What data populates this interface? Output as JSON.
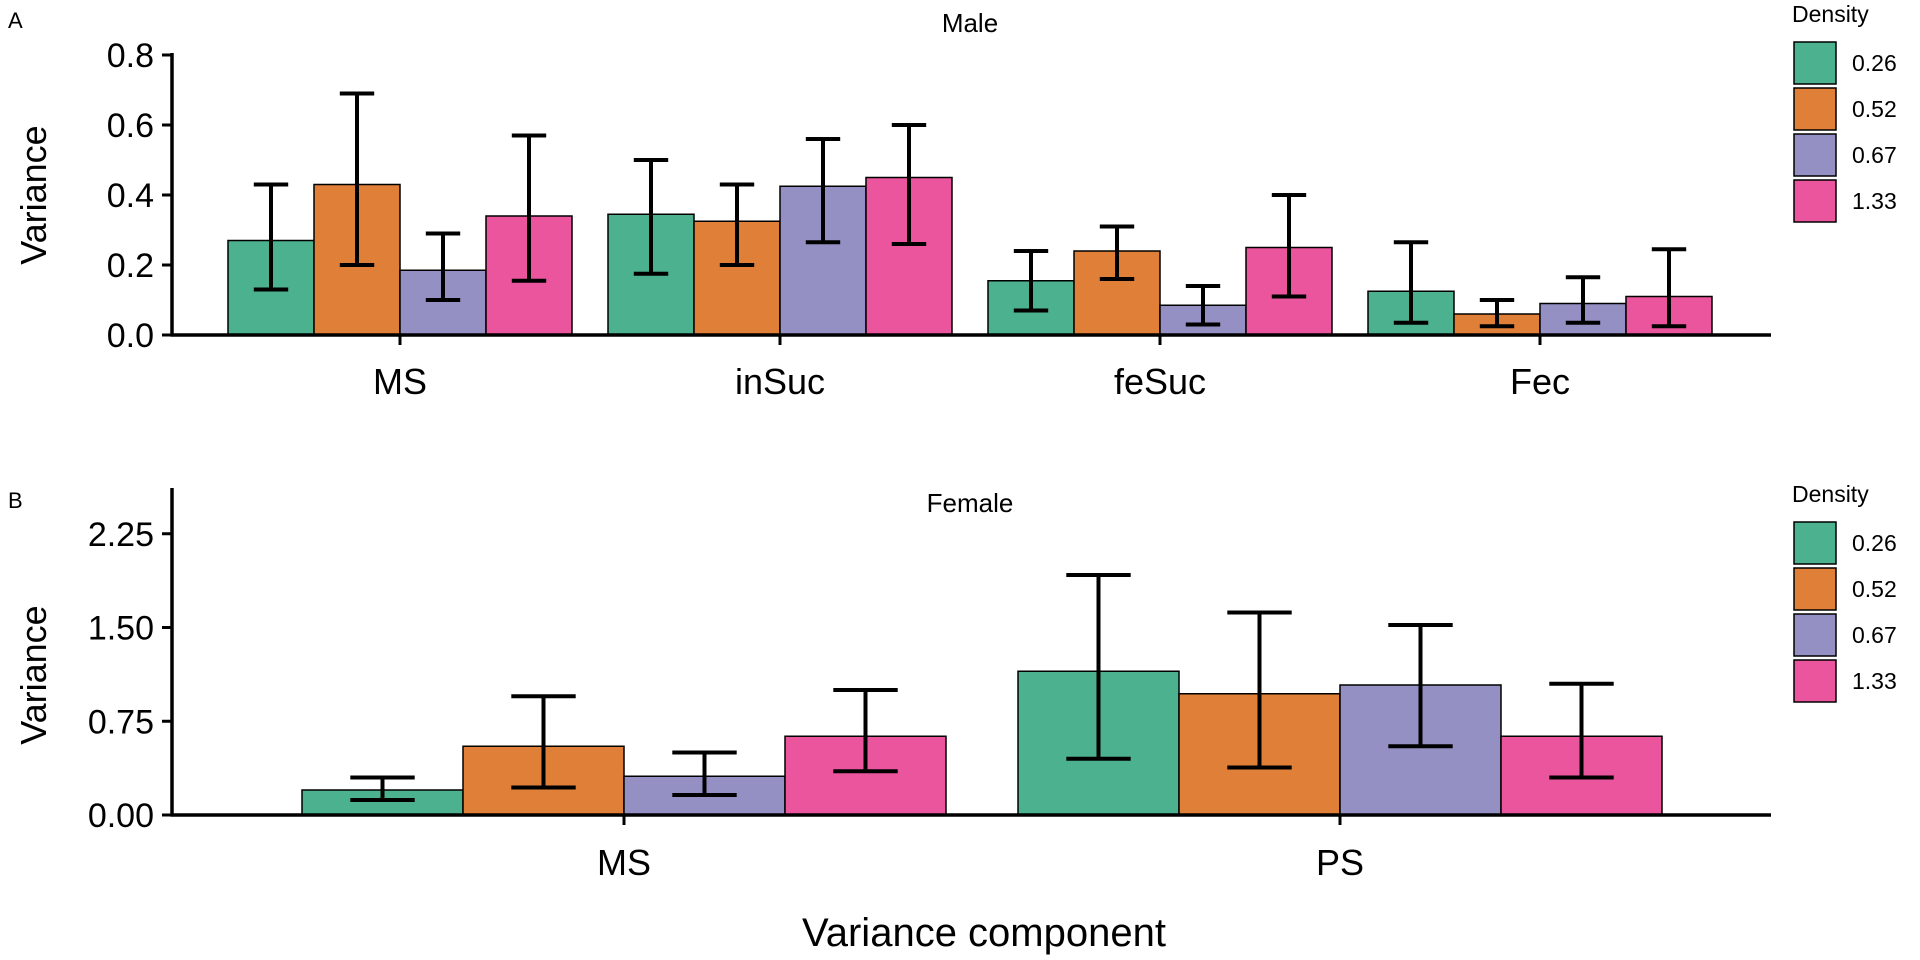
{
  "figure": {
    "xlabel": "Variance component"
  },
  "legend_title": "Density",
  "legend_labels": [
    "0.26",
    "0.52",
    "0.67",
    "1.33"
  ],
  "colors": [
    "#4bb18f",
    "#e07f38",
    "#9490c4",
    "#eb559d"
  ],
  "chart_data": [
    {
      "type": "bar",
      "panel": "A",
      "title": "Male",
      "ylabel": "Variance",
      "xlabel": "",
      "ylim": [
        0,
        0.8
      ],
      "yticks": [
        "0.0",
        "0.2",
        "0.4",
        "0.6",
        "0.8"
      ],
      "categories": [
        "MS",
        "inSuc",
        "feSuc",
        "Fec"
      ],
      "series": [
        {
          "name": "0.26",
          "values": [
            0.27,
            0.345,
            0.155,
            0.125
          ],
          "err_low": [
            0.13,
            0.175,
            0.07,
            0.035
          ],
          "err_high": [
            0.43,
            0.5,
            0.24,
            0.265
          ]
        },
        {
          "name": "0.52",
          "values": [
            0.43,
            0.325,
            0.24,
            0.06
          ],
          "err_low": [
            0.2,
            0.2,
            0.16,
            0.025
          ],
          "err_high": [
            0.69,
            0.43,
            0.31,
            0.1
          ]
        },
        {
          "name": "0.67",
          "values": [
            0.185,
            0.425,
            0.085,
            0.09
          ],
          "err_low": [
            0.1,
            0.265,
            0.03,
            0.035
          ],
          "err_high": [
            0.29,
            0.56,
            0.14,
            0.165
          ]
        },
        {
          "name": "1.33",
          "values": [
            0.34,
            0.45,
            0.25,
            0.11
          ],
          "err_low": [
            0.155,
            0.26,
            0.11,
            0.025
          ],
          "err_high": [
            0.57,
            0.6,
            0.4,
            0.245
          ]
        }
      ],
      "legend": "right",
      "grid": false
    },
    {
      "type": "bar",
      "panel": "B",
      "title": "Female",
      "ylabel": "Variance",
      "xlabel": "Variance component",
      "ylim": [
        0,
        2.6
      ],
      "yticks": [
        "0.00",
        "0.75",
        "1.50",
        "2.25"
      ],
      "categories": [
        "MS",
        "PS"
      ],
      "series": [
        {
          "name": "0.26",
          "values": [
            0.2,
            1.15
          ],
          "err_low": [
            0.12,
            0.45
          ],
          "err_high": [
            0.3,
            1.92
          ]
        },
        {
          "name": "0.52",
          "values": [
            0.55,
            0.97
          ],
          "err_low": [
            0.22,
            0.38
          ],
          "err_high": [
            0.95,
            1.62
          ]
        },
        {
          "name": "0.67",
          "values": [
            0.31,
            1.04
          ],
          "err_low": [
            0.16,
            0.55
          ],
          "err_high": [
            0.5,
            1.52
          ]
        },
        {
          "name": "1.33",
          "values": [
            0.63,
            0.63
          ],
          "err_low": [
            0.35,
            0.3
          ],
          "err_high": [
            1.0,
            1.05
          ]
        }
      ],
      "legend": "right",
      "grid": false
    }
  ]
}
